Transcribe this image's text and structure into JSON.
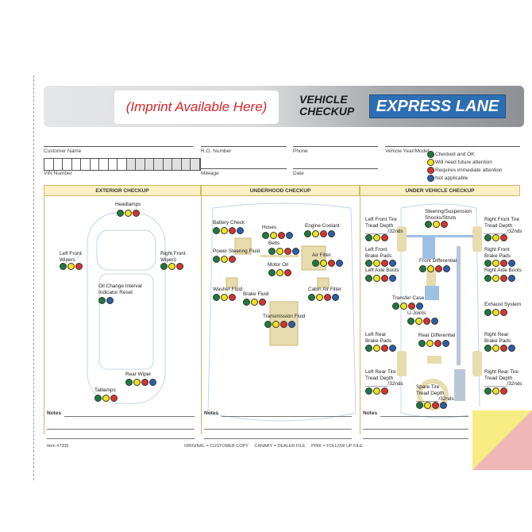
{
  "header": {
    "imprint": "(Imprint Available Here)",
    "title_line1": "VEHICLE",
    "title_line2": "CHECKUP",
    "brand": "EXPRESS LANE"
  },
  "fields": {
    "customer_name": "Customer Name",
    "ro_number": "R.O. Number",
    "phone": "Phone",
    "vehicle": "Vehicle Year/Model",
    "vin": "VIN Number",
    "mileage": "Mileage",
    "date": "Date"
  },
  "legend": [
    {
      "color": "#1e7a3c",
      "label": "Checked and OK"
    },
    {
      "color": "#f2e318",
      "label": "Will need future attention"
    },
    {
      "color": "#d9332b",
      "label": "Requires immediate attention"
    },
    {
      "color": "#2a5fa8",
      "label": "Not applicable"
    }
  ],
  "colors": {
    "g": "#1e7a3c",
    "y": "#f2e318",
    "r": "#d9332b",
    "b": "#2a5fa8"
  },
  "sections": [
    {
      "title": "EXTERIOR CHECKUP",
      "items": [
        {
          "label": "Headlamps",
          "dots": "gyr"
        },
        {
          "label": "Left Front\nWipers",
          "dots": "gyr"
        },
        {
          "label": "Right Front\nWipers",
          "dots": "gyr"
        },
        {
          "label": "Oil Change Interval\nIndicator Reset",
          "dots": "gb"
        },
        {
          "label": "Rear Wiper",
          "dots": "gyrb"
        },
        {
          "label": "Taillamps",
          "dots": "gyr"
        }
      ]
    },
    {
      "title": "UNDERHOOD CHECKUP",
      "items": [
        {
          "label": "Battery Check",
          "dots": "gyrb"
        },
        {
          "label": "Hoses",
          "dots": "gyrb"
        },
        {
          "label": "Engine Coolant",
          "dots": "gyrb"
        },
        {
          "label": "Belts",
          "dots": "gyrb"
        },
        {
          "label": "Power Steering Fluid",
          "dots": "gyr"
        },
        {
          "label": "Air Filter",
          "dots": "gyrb"
        },
        {
          "label": "Motor Oil",
          "dots": "gyr"
        },
        {
          "label": "Washer Fluid",
          "dots": "gyr"
        },
        {
          "label": "Cabin Air Filter",
          "dots": "gyrb"
        },
        {
          "label": "Brake Fluid",
          "dots": "gyr"
        },
        {
          "label": "Transmission Fluid",
          "dots": "gyrb"
        }
      ]
    },
    {
      "title": "UNDER VEHICLE CHECKUP",
      "items": [
        {
          "label": "Steering/Suspension\nShocks/Struts",
          "dots": "gyr"
        },
        {
          "label": "Left Front Tire\nTread Depth\n________/32nds",
          "dots": "gyr"
        },
        {
          "label": "Right Front Tire\nTread Depth\n________/32nds",
          "dots": "gyr"
        },
        {
          "label": "Left Front\nBrake Pads",
          "dots": "gyrb"
        },
        {
          "label": "Right Front\nBrake Pads",
          "dots": "gyrb"
        },
        {
          "label": "Front Differential",
          "dots": "gyrb"
        },
        {
          "label": "Left Axle Boots",
          "dots": "gyrb"
        },
        {
          "label": "Right Axle Boots",
          "dots": "gyrb"
        },
        {
          "label": "Transfer Case",
          "dots": "gyrb"
        },
        {
          "label": "Exhaust System",
          "dots": "gyr"
        },
        {
          "label": "U-Joints",
          "dots": "gyrb"
        },
        {
          "label": "Left Rear\nBrake Pads",
          "dots": "gyrb"
        },
        {
          "label": "Rear Differential",
          "dots": "gyrb"
        },
        {
          "label": "Right Rear\nBrake Pads",
          "dots": "gyrb"
        },
        {
          "label": "Left Rear Tire\nTread Depth\n________/32nds",
          "dots": "gyr"
        },
        {
          "label": "Right Rear Tire\nTread Depth\n________/32nds",
          "dots": "gyr"
        },
        {
          "label": "Spare Tire\nTread Depth\n________/32nds",
          "dots": "gyrb"
        }
      ]
    }
  ],
  "notes_label": "Notes",
  "footer": {
    "item": "Item #7206",
    "copies": "ORIGINAL = CUSTOMER COPY     CANARY = DEALER FILE     PINK = FOLLOW UP FILE"
  }
}
